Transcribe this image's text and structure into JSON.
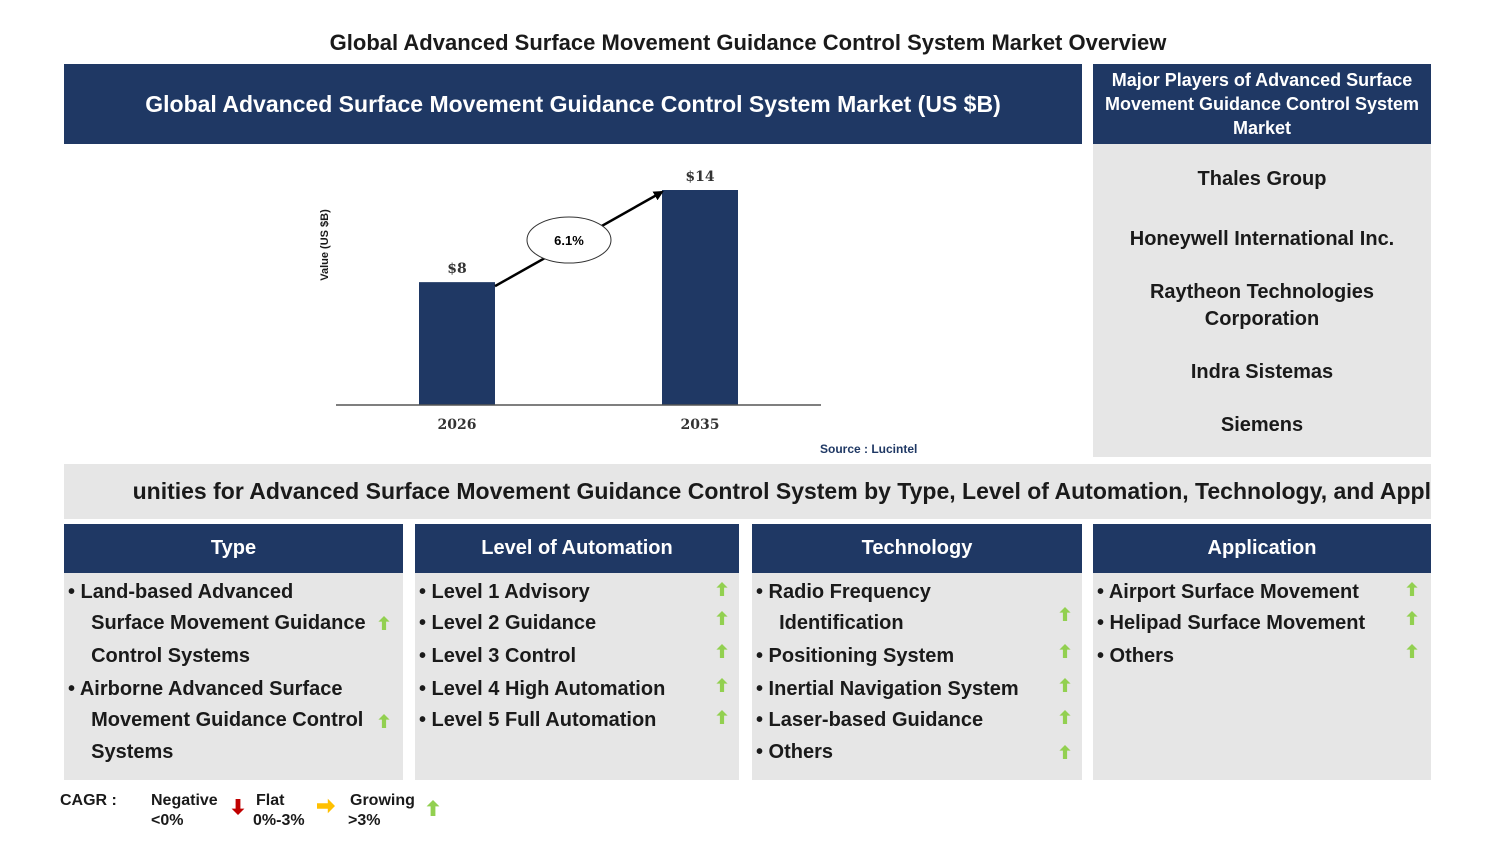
{
  "page_title": "Global Advanced Surface Movement Guidance Control System Market Overview",
  "chart_header": "Global Advanced Surface Movement Guidance Control System Market (US $B)",
  "chart_data": {
    "type": "bar",
    "categories": [
      "2026",
      "2035"
    ],
    "values": [
      8,
      14
    ],
    "value_labels": [
      "$8",
      "$14"
    ],
    "ylabel": "Value (US $B)",
    "cagr_label": "6.1%",
    "bar_color": "#1f3864",
    "grid": false
  },
  "source": "Source : Lucintel",
  "players": {
    "header": "Major Players of Advanced Surface Movement Guidance Control System Market",
    "items": [
      "Thales Group",
      "Honeywell International Inc.",
      "Raytheon Technologies Corporation",
      "Indra Sistemas",
      "Siemens"
    ]
  },
  "opportunities_title": "unities for Advanced Surface Movement Guidance Control System by Type, Level of Automation, Technology, and Appl",
  "segments": [
    {
      "header": "Type",
      "items": [
        {
          "lines": [
            "Land-based Advanced",
            "Surface Movement Guidance",
            "Control Systems"
          ],
          "trend": "growing"
        },
        {
          "lines": [
            "Airborne Advanced Surface",
            "Movement Guidance Control",
            "Systems"
          ],
          "trend": "growing"
        }
      ]
    },
    {
      "header": "Level of Automation",
      "items": [
        {
          "lines": [
            "Level 1 Advisory"
          ],
          "trend": "growing"
        },
        {
          "lines": [
            "Level 2 Guidance"
          ],
          "trend": "growing"
        },
        {
          "lines": [
            "Level 3 Control"
          ],
          "trend": "growing"
        },
        {
          "lines": [
            "Level 4 High Automation"
          ],
          "trend": "growing"
        },
        {
          "lines": [
            "Level 5 Full Automation"
          ],
          "trend": "growing"
        }
      ]
    },
    {
      "header": "Technology",
      "items": [
        {
          "lines": [
            "Radio Frequency",
            "Identification"
          ],
          "trend": "growing"
        },
        {
          "lines": [
            "Positioning System"
          ],
          "trend": "growing"
        },
        {
          "lines": [
            "Inertial Navigation System"
          ],
          "trend": "growing"
        },
        {
          "lines": [
            "Laser-based Guidance"
          ],
          "trend": "growing"
        },
        {
          "lines": [
            "Others"
          ],
          "trend": "growing"
        }
      ]
    },
    {
      "header": "Application",
      "items": [
        {
          "lines": [
            "Airport Surface Movement"
          ],
          "trend": "growing"
        },
        {
          "lines": [
            "Helipad Surface Movement"
          ],
          "trend": "growing"
        },
        {
          "lines": [
            "Others"
          ],
          "trend": "growing"
        }
      ]
    }
  ],
  "legend": {
    "label": "CAGR :",
    "negative": {
      "name": "Negative",
      "range": "<0%",
      "color": "#c00000"
    },
    "flat": {
      "name": "Flat",
      "range": "0%-3%",
      "color": "#ffc000"
    },
    "growing": {
      "name": "Growing",
      "range": ">3%",
      "color": "#92d050"
    }
  },
  "icons": {
    "negative": "down-arrow-icon",
    "flat": "right-arrow-icon",
    "growing": "up-arrow-icon"
  }
}
